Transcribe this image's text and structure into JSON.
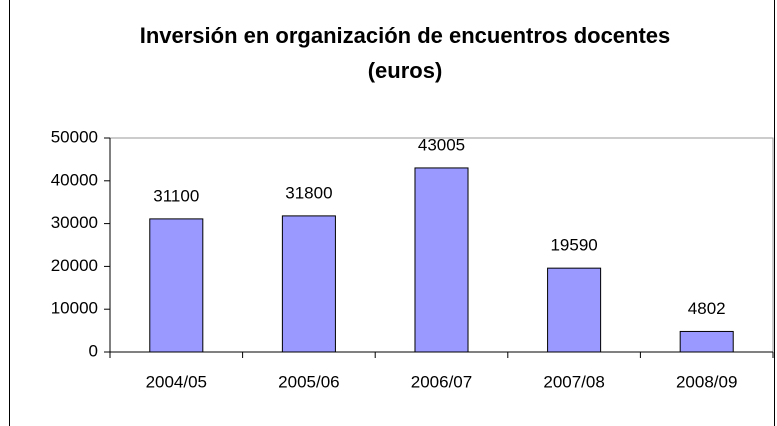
{
  "chart_data": {
    "type": "bar",
    "title": "Inversión en organización de encuentros docentes (euros)",
    "categories": [
      "2004/05",
      "2005/06",
      "2006/07",
      "2007/08",
      "2008/09"
    ],
    "values": [
      31100,
      31800,
      43005,
      19590,
      4802
    ],
    "color": "#9999ff",
    "ylim": [
      0,
      50000
    ],
    "yticks": [
      0,
      10000,
      20000,
      30000,
      40000,
      50000
    ],
    "grid": false
  }
}
